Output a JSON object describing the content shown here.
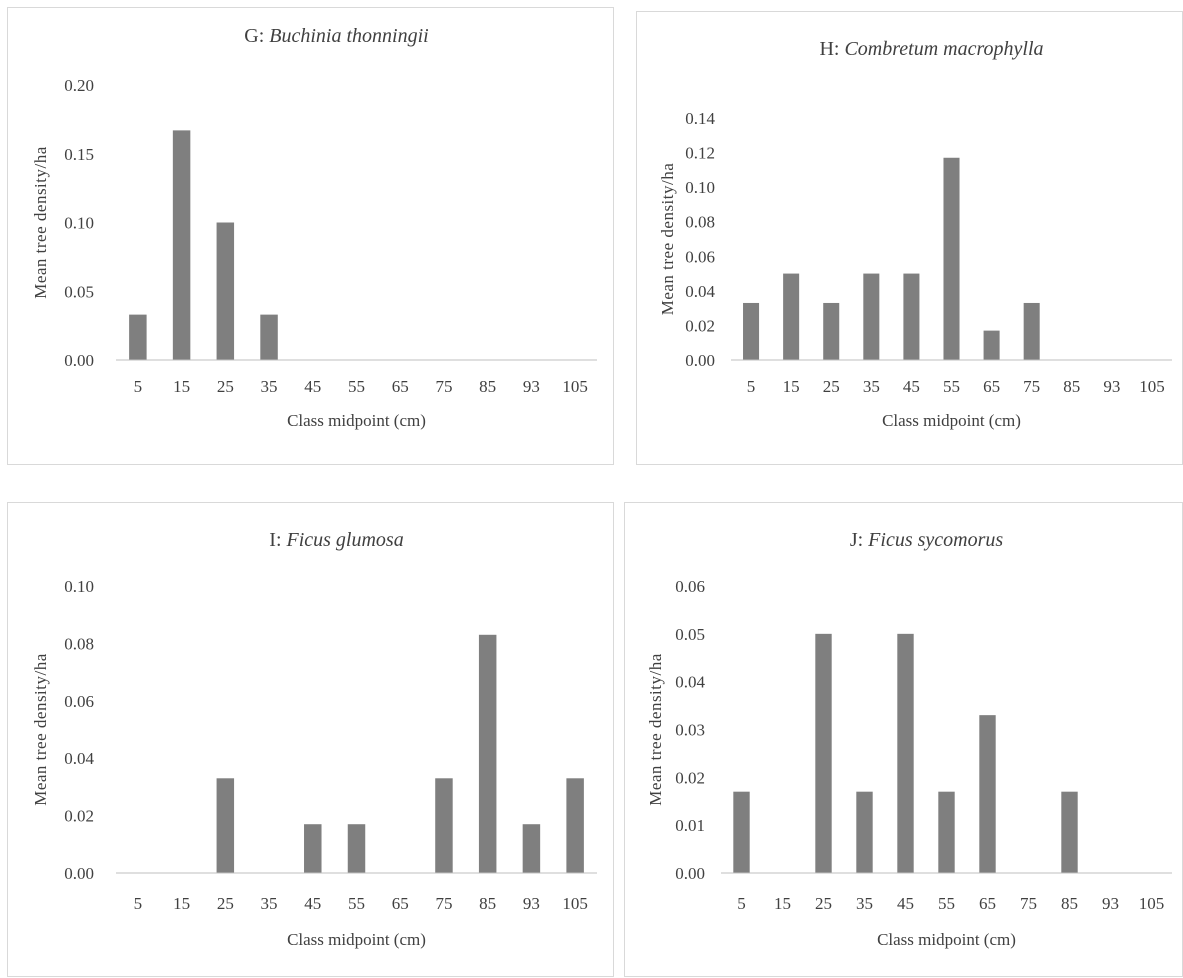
{
  "colors": {
    "bar": "#7f7f7f",
    "axis": "#bfbfbf",
    "text": "#404040",
    "border": "#d9d9d9"
  },
  "chart_data": [
    {
      "id": "g",
      "type": "bar",
      "title_prefix": "G: ",
      "title_species": "Buchinia thonningii",
      "xlabel": "Class midpoint  (cm)",
      "ylabel": "Mean tree density/ha",
      "categories": [
        "5",
        "15",
        "25",
        "35",
        "45",
        "55",
        "65",
        "75",
        "85",
        "93",
        "105"
      ],
      "values": [
        0.033,
        0.167,
        0.1,
        0.033,
        0,
        0,
        0,
        0,
        0,
        0,
        0
      ],
      "ylim": [
        0,
        0.2
      ],
      "yticks": [
        "0.00",
        "0.05",
        "0.10",
        "0.15",
        "0.20"
      ],
      "grid": false
    },
    {
      "id": "h",
      "type": "bar",
      "title_prefix": "H: ",
      "title_species": "Combretum macrophylla",
      "xlabel": "Class midpoint  (cm)",
      "ylabel": "Mean tree density/ha",
      "categories": [
        "5",
        "15",
        "25",
        "35",
        "45",
        "55",
        "65",
        "75",
        "85",
        "93",
        "105"
      ],
      "values": [
        0.033,
        0.05,
        0.033,
        0.05,
        0.05,
        0.117,
        0.017,
        0.033,
        0,
        0,
        0
      ],
      "ylim": [
        0,
        0.14
      ],
      "yticks": [
        "0.00",
        "0.02",
        "0.04",
        "0.06",
        "0.08",
        "0.10",
        "0.12",
        "0.14"
      ],
      "grid": false
    },
    {
      "id": "i",
      "type": "bar",
      "title_prefix": "I: ",
      "title_species": "Ficus glumosa",
      "xlabel": "Class midpoint  (cm)",
      "ylabel": "Mean tree density/ha",
      "categories": [
        "5",
        "15",
        "25",
        "35",
        "45",
        "55",
        "65",
        "75",
        "85",
        "93",
        "105"
      ],
      "values": [
        0,
        0,
        0.033,
        0,
        0.017,
        0.017,
        0,
        0.033,
        0.083,
        0.017,
        0.033
      ],
      "ylim": [
        0,
        0.1
      ],
      "yticks": [
        "0.00",
        "0.02",
        "0.04",
        "0.06",
        "0.08",
        "0.10"
      ],
      "grid": false
    },
    {
      "id": "j",
      "type": "bar",
      "title_prefix": "J: ",
      "title_species": "Ficus sycomorus",
      "xlabel": "Class midpoint  (cm)",
      "ylabel": "Mean tree density/ha",
      "categories": [
        "5",
        "15",
        "25",
        "35",
        "45",
        "55",
        "65",
        "75",
        "85",
        "93",
        "105"
      ],
      "values": [
        0.017,
        0,
        0.05,
        0.017,
        0.05,
        0.017,
        0.033,
        0,
        0.017,
        0,
        0
      ],
      "ylim": [
        0,
        0.06
      ],
      "yticks": [
        "0.00",
        "0.01",
        "0.02",
        "0.03",
        "0.04",
        "0.05",
        "0.06"
      ],
      "grid": false
    }
  ]
}
